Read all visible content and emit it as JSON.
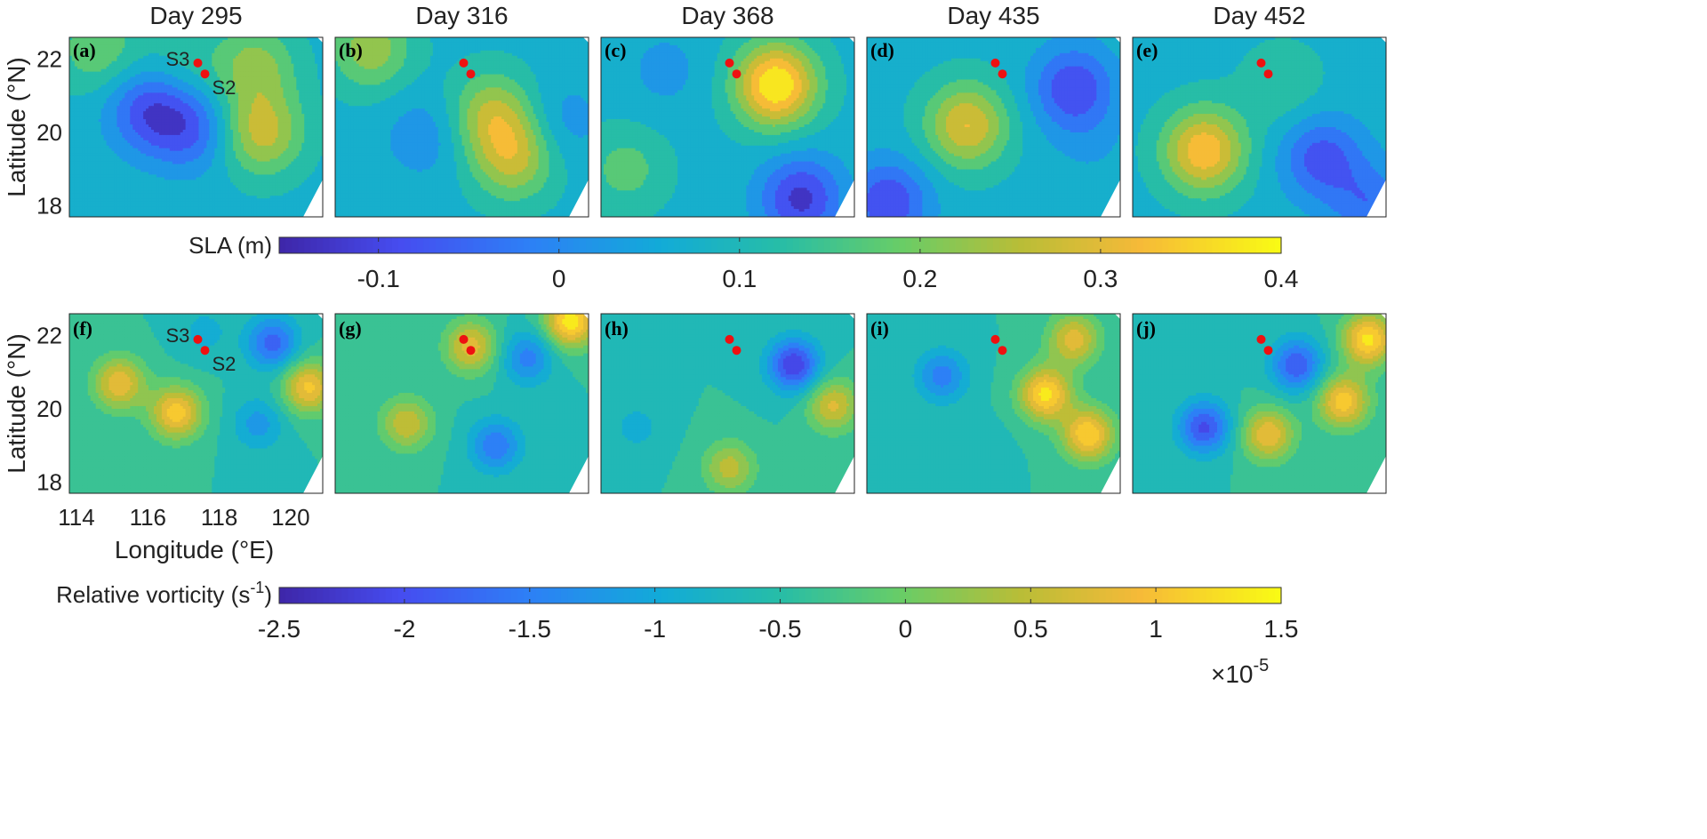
{
  "chart_data": {
    "type": "heatmap",
    "description_rows": [
      "SLA",
      "Relative vorticity"
    ],
    "columns": [
      "Day 295",
      "Day 316",
      "Day 368",
      "Day 435",
      "Day 452"
    ],
    "xlabel": "Longitude (°E)",
    "ylabel": "Latitude (°N)",
    "xticks": [
      "114",
      "116",
      "118",
      "120"
    ],
    "xlim": [
      113.8,
      120.9
    ],
    "yticks": [
      "18",
      "20",
      "22"
    ],
    "ylim": [
      17.7,
      22.6
    ],
    "station_labels": [
      "S3",
      "S2"
    ],
    "stations": [
      {
        "name": "S3",
        "lon": 117.4,
        "lat": 21.9
      },
      {
        "name": "S2",
        "lon": 117.6,
        "lat": 21.6
      }
    ],
    "panels_top": [
      {
        "label": "(a)",
        "title": "Day 295"
      },
      {
        "label": "(b)",
        "title": "Day 316"
      },
      {
        "label": "(c)",
        "title": "Day 368"
      },
      {
        "label": "(d)",
        "title": "Day 435"
      },
      {
        "label": "(e)",
        "title": "Day 452"
      }
    ],
    "panels_bottom": [
      {
        "label": "(f)"
      },
      {
        "label": "(g)"
      },
      {
        "label": "(h)"
      },
      {
        "label": "(i)"
      },
      {
        "label": "(j)"
      }
    ],
    "colorbar_sla": {
      "label": "SLA (m)",
      "range": [
        -0.155,
        0.4
      ],
      "ticks": [
        -0.1,
        0,
        0.1,
        0.2,
        0.3,
        0.4
      ],
      "tick_labels": [
        "-0.1",
        "0",
        "0.1",
        "0.2",
        "0.3",
        "0.4"
      ]
    },
    "colorbar_vort": {
      "label_main": "Relative vorticity (s",
      "label_sup": "-1",
      "label_end": ")",
      "range": [
        -2.5,
        1.5
      ],
      "ticks": [
        -2.5,
        -2,
        -1.5,
        -1,
        -0.5,
        0,
        0.5,
        1,
        1.5
      ],
      "tick_labels": [
        "-2.5",
        "-2",
        "-1.5",
        "-1",
        "-0.5",
        "0",
        "0.5",
        "1",
        "1.5"
      ],
      "multiplier_base": "×10",
      "multiplier_exp": "-5"
    },
    "sla_features": [
      [
        [
          117.0,
          21.9,
          0.13
        ],
        [
          116.0,
          20.6,
          -0.08
        ],
        [
          117.2,
          20.1,
          -0.06
        ],
        [
          119.2,
          20.0,
          0.27
        ],
        [
          119.0,
          21.8,
          0.22
        ],
        [
          114.6,
          22.3,
          0.19
        ]
      ],
      [
        [
          114.8,
          22.3,
          0.23
        ],
        [
          116.3,
          19.9,
          0.01
        ],
        [
          118.2,
          20.5,
          0.25
        ],
        [
          118.8,
          19.3,
          0.26
        ],
        [
          120.2,
          20.3,
          0.02
        ]
      ],
      [
        [
          118.7,
          21.3,
          0.4
        ],
        [
          114.5,
          19.0,
          0.17
        ],
        [
          119.4,
          18.2,
          -0.12
        ],
        [
          115.6,
          21.7,
          0.03
        ]
      ],
      [
        [
          116.6,
          20.2,
          0.3
        ],
        [
          119.6,
          21.2,
          -0.1
        ],
        [
          114.4,
          18.1,
          -0.1
        ],
        [
          120.1,
          19.6,
          0.05
        ]
      ],
      [
        [
          115.8,
          19.5,
          0.34
        ],
        [
          119.1,
          19.3,
          -0.08
        ],
        [
          118.0,
          21.3,
          0.14
        ],
        [
          120.5,
          18.0,
          -0.04
        ]
      ]
    ],
    "vort_features": [
      [
        [
          115.2,
          20.7,
          0.9
        ],
        [
          116.8,
          19.9,
          1.1
        ],
        [
          119.5,
          21.8,
          -1.8
        ],
        [
          120.5,
          20.6,
          1.0
        ],
        [
          119.1,
          19.6,
          -1.2
        ],
        [
          117.6,
          22.1,
          -0.9
        ]
      ],
      [
        [
          117.6,
          21.7,
          0.8
        ],
        [
          115.8,
          19.6,
          0.6
        ],
        [
          119.2,
          21.4,
          -1.5
        ],
        [
          118.3,
          19.0,
          -1.6
        ],
        [
          120.4,
          22.4,
          1.4
        ]
      ],
      [
        [
          119.2,
          21.2,
          -2.2
        ],
        [
          114.8,
          19.5,
          -0.9
        ],
        [
          120.3,
          20.1,
          0.7
        ],
        [
          117.4,
          18.4,
          0.5
        ]
      ],
      [
        [
          115.9,
          20.9,
          -1.5
        ],
        [
          118.8,
          20.4,
          1.3
        ],
        [
          120.0,
          19.3,
          1.2
        ],
        [
          119.6,
          21.9,
          0.8
        ],
        [
          117.1,
          19.1,
          -0.6
        ]
      ],
      [
        [
          115.8,
          19.5,
          -2.0
        ],
        [
          118.4,
          21.2,
          -1.9
        ],
        [
          117.6,
          19.3,
          0.9
        ],
        [
          119.7,
          20.2,
          1.1
        ],
        [
          120.4,
          21.9,
          1.3
        ]
      ]
    ]
  }
}
